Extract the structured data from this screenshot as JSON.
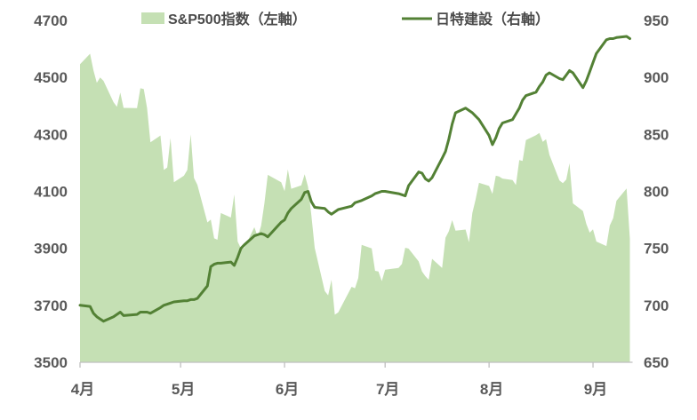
{
  "legend": {
    "area_series": {
      "label": "S&P500指数（左軸）",
      "swatch_color": "#c5e0b4"
    },
    "line_series": {
      "label": "日特建設（右軸）",
      "swatch_color": "#538135"
    }
  },
  "colors": {
    "area_fill": "#c5e0b4",
    "line_stroke": "#538135",
    "axis_line": "#bfbfbf",
    "label_text": "#595959"
  },
  "chart_data": {
    "type": "area+line combo, dual axis",
    "title": "",
    "x_axis": {
      "tick_labels": [
        "4月",
        "5月",
        "6月",
        "7月",
        "8月",
        "9月"
      ],
      "tick_day_offsets": [
        0,
        30,
        61,
        91,
        122,
        153
      ],
      "x_unit": "calendar days since start (trading-day series)"
    },
    "left_axis": {
      "ticks": [
        4700,
        4500,
        4300,
        4100,
        3900,
        3700,
        3500
      ],
      "min": 3500,
      "max": 4700
    },
    "right_axis": {
      "ticks": [
        950,
        900,
        850,
        800,
        750,
        700,
        650
      ],
      "min": 650,
      "max": 950
    },
    "grid": false,
    "legend_position": "top",
    "days": [
      0,
      3,
      4,
      5,
      6,
      7,
      10,
      11,
      12,
      13,
      17,
      18,
      19,
      20,
      21,
      24,
      25,
      26,
      27,
      28,
      31,
      32,
      33,
      34,
      35,
      38,
      39,
      40,
      41,
      42,
      45,
      46,
      47,
      48,
      49,
      52,
      53,
      54,
      55,
      56,
      60,
      61,
      62,
      63,
      66,
      67,
      68,
      69,
      70,
      73,
      74,
      75,
      76,
      77,
      81,
      82,
      83,
      84,
      87,
      88,
      89,
      90,
      91,
      95,
      96,
      97,
      98,
      101,
      102,
      103,
      104,
      105,
      108,
      109,
      110,
      111,
      112,
      115,
      116,
      117,
      118,
      119,
      122,
      123,
      124,
      125,
      126,
      129,
      130,
      131,
      132,
      133,
      136,
      137,
      138,
      139,
      140,
      143,
      144,
      145,
      146,
      147,
      150,
      151,
      152,
      153,
      154,
      157,
      158,
      159,
      160,
      163,
      164
    ],
    "series": [
      {
        "name": "S&P500指数（左軸）",
        "type": "area",
        "axis": "left",
        "color": "#c5e0b4",
        "values": [
          4546,
          4583,
          4525,
          4481,
          4500,
          4488,
          4413,
          4397,
          4447,
          4393,
          4392,
          4462,
          4459,
          4393,
          4272,
          4296,
          4175,
          4184,
          4287,
          4132,
          4155,
          4175,
          4300,
          4147,
          4123,
          3991,
          4001,
          3935,
          3930,
          4024,
          4008,
          4089,
          3924,
          3900,
          3901,
          3974,
          3941,
          3979,
          4058,
          4158,
          4132,
          4101,
          4177,
          4109,
          4121,
          4160,
          4116,
          4017,
          3901,
          3750,
          3735,
          3790,
          3667,
          3675,
          3765,
          3760,
          3796,
          3912,
          3900,
          3821,
          3819,
          3785,
          3825,
          3831,
          3845,
          3902,
          3899,
          3854,
          3819,
          3802,
          3790,
          3863,
          3831,
          3937,
          3960,
          3999,
          3962,
          3966,
          3921,
          4024,
          4072,
          4130,
          4119,
          4091,
          4155,
          4152,
          4145,
          4140,
          4122,
          4210,
          4207,
          4280,
          4297,
          4305,
          4274,
          4283,
          4228,
          4138,
          4129,
          4141,
          4199,
          4058,
          4031,
          3986,
          3955,
          3967,
          3924,
          3908,
          3980,
          4006,
          4067,
          4110,
          3933
        ]
      },
      {
        "name": "日特建設（右軸）",
        "type": "line",
        "axis": "right",
        "color": "#538135",
        "values": [
          700,
          699,
          693,
          690,
          688,
          686,
          690,
          692,
          694,
          691,
          692,
          694,
          694,
          694,
          693,
          698,
          700,
          701,
          702,
          703,
          704,
          704,
          705,
          705,
          706,
          717,
          734,
          736,
          737,
          737,
          738,
          735,
          742,
          750,
          753,
          761,
          762,
          763,
          762,
          760,
          773,
          775,
          781,
          785,
          793,
          799,
          800,
          791,
          786,
          785,
          782,
          780,
          782,
          784,
          787,
          790,
          791,
          792,
          796,
          798,
          799,
          800,
          800,
          798,
          797,
          796,
          805,
          817,
          816,
          811,
          809,
          812,
          829,
          835,
          846,
          859,
          869,
          873,
          871,
          869,
          866,
          863,
          849,
          841,
          847,
          855,
          860,
          863,
          868,
          873,
          880,
          884,
          887,
          892,
          896,
          902,
          904,
          899,
          898,
          902,
          906,
          904,
          891,
          897,
          905,
          913,
          921,
          933,
          934,
          934,
          935,
          936,
          934
        ]
      }
    ]
  }
}
